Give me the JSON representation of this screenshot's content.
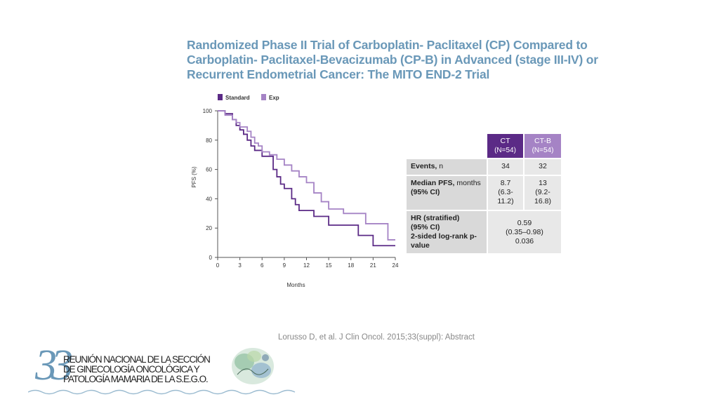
{
  "title_lines": [
    "Randomized Phase II Trial of Carboplatin- Paclitaxel (CP) Compared to",
    "Carboplatin- Paclitaxel-Bevacizumab (CP-B) in Advanced (stage III-IV) or",
    "Recurrent Endometrial Cancer: The MITO END-2 Trial"
  ],
  "chart_data": {
    "type": "line",
    "step": true,
    "xlabel": "Months",
    "ylabel": "PFS (%)",
    "xlim": [
      0,
      24
    ],
    "ylim": [
      0,
      100
    ],
    "xticks": [
      0,
      3,
      6,
      9,
      12,
      15,
      18,
      21,
      24
    ],
    "yticks": [
      0,
      20,
      40,
      60,
      80,
      100
    ],
    "grid": false,
    "legend_position": "top-left",
    "series": [
      {
        "name": "Standard",
        "color": "#5b2a86",
        "x": [
          0,
          1,
          2,
          2.5,
          3,
          3.5,
          4,
          4.5,
          5,
          6,
          7.5,
          8,
          8.5,
          9,
          10,
          10.5,
          11,
          12,
          13,
          15,
          19,
          21,
          24
        ],
        "y": [
          100,
          98,
          94,
          90,
          87,
          84,
          80,
          76,
          73,
          69,
          60,
          55,
          50,
          47,
          40,
          36,
          32,
          32,
          28,
          22,
          15,
          8,
          8
        ]
      },
      {
        "name": "Exp",
        "color": "#a583c5",
        "x": [
          0,
          1,
          2,
          2.5,
          3,
          4,
          4.5,
          5,
          5.5,
          6,
          7,
          8,
          9,
          10,
          11,
          12,
          13,
          14,
          15,
          17,
          20,
          23,
          24
        ],
        "y": [
          100,
          97,
          94,
          92,
          89,
          86,
          82,
          78,
          76,
          72,
          70,
          67,
          63,
          59,
          55,
          51,
          44,
          38,
          33,
          30,
          23,
          12,
          12
        ]
      }
    ]
  },
  "table": {
    "col_headers": [
      {
        "group": "CT",
        "n": "(N=54)"
      },
      {
        "group": "CT-B",
        "n": "(N=54)"
      }
    ],
    "rows": [
      {
        "label_bold": "Events,",
        "label_rest": " n",
        "ct": "34",
        "ctb": "32"
      },
      {
        "label_bold": "Median PFS,",
        "label_rest": " months",
        "label_bold2": "(95% CI)",
        "ct": "8.7\n(6.3-\n11.2)",
        "ctb": "13\n(9.2-\n16.8)"
      },
      {
        "label_lines": [
          "HR (stratified)",
          "(95% CI)",
          "2-sided log-rank p-",
          "value"
        ],
        "merged_lines": [
          "0.59",
          "(0.35–0.98)",
          "0.036"
        ]
      }
    ]
  },
  "reference": "Lorusso D, et al. J Clin Oncol. 2015;33(suppl): Abstract",
  "logo": {
    "number": "33",
    "lines": [
      "REUNIÓN NACIONAL DE LA SECCIÓN",
      "DE GINECOLOGÍA ONCOLÓGICA Y",
      "PATOLOGÍA MAMARIA DE LA S.E.G.O."
    ]
  },
  "colors": {
    "title": "#6a98b8",
    "standard": "#5b2a86",
    "exp": "#a583c5"
  }
}
